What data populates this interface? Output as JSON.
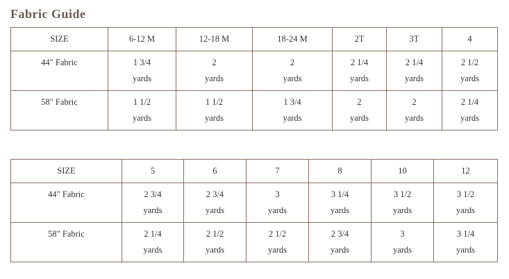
{
  "title": "Fabric Guide",
  "tables": [
    {
      "header": [
        "SIZE",
        "6-12 M",
        "12-18 M",
        "18-24 M",
        "2T",
        "3T",
        "4"
      ],
      "rows": [
        {
          "label": "44\" Fabric",
          "cells": [
            [
              "1 3/4",
              "yards"
            ],
            [
              "2",
              "yards"
            ],
            [
              "2",
              "yards"
            ],
            [
              "2 1/4",
              "yards"
            ],
            [
              "2 1/4",
              "yards"
            ],
            [
              "2 1/2",
              "yards"
            ]
          ]
        },
        {
          "label": "58\" Fabric",
          "cells": [
            [
              "1 1/2",
              "yards"
            ],
            [
              "1 1/2",
              "yards"
            ],
            [
              "1 3/4",
              "yards"
            ],
            [
              "2",
              "yards"
            ],
            [
              "2",
              "yards"
            ],
            [
              "2 1/4",
              "yards"
            ]
          ]
        }
      ]
    },
    {
      "header": [
        "SIZE",
        "5",
        "6",
        "7",
        "8",
        "10",
        "12"
      ],
      "rows": [
        {
          "label": "44\" Fabric",
          "cells": [
            [
              "2 3/4",
              "yards"
            ],
            [
              "2 3/4",
              "yards"
            ],
            [
              "3",
              "yards"
            ],
            [
              "3 1/4",
              "yards"
            ],
            [
              "3 1/2",
              "yards"
            ],
            [
              "3 1/2",
              "yards"
            ]
          ]
        },
        {
          "label": "58\" Fabric",
          "cells": [
            [
              "2 1/4",
              "yards"
            ],
            [
              "2 1/2",
              "yards"
            ],
            [
              "2 1/2",
              "yards"
            ],
            [
              "2 3/4",
              "yards"
            ],
            [
              "3",
              "yards"
            ],
            [
              "3 1/4",
              "yards"
            ]
          ]
        }
      ]
    }
  ]
}
